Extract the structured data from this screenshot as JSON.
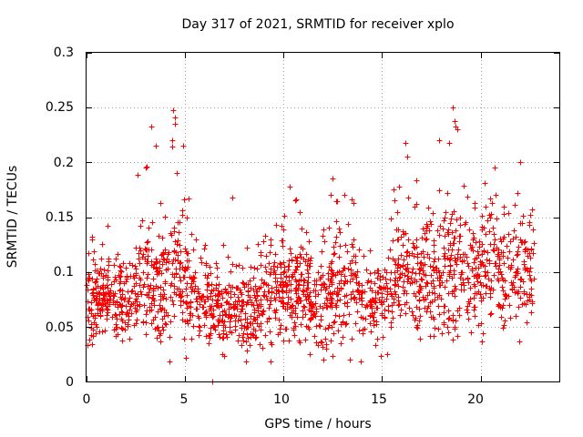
{
  "chart_data": {
    "type": "scatter",
    "title": "Day 317 of 2021, SRMTID for receiver xplo",
    "xlabel": "GPS time / hours",
    "ylabel": "SRMTID / TECUs",
    "xlim": [
      0,
      24
    ],
    "ylim": [
      0,
      0.3
    ],
    "xticks": [
      0,
      5,
      10,
      15,
      20
    ],
    "xtick_labels": [
      "0",
      "5",
      "10",
      "15",
      "20"
    ],
    "yticks": [
      0,
      0.05,
      0.1,
      0.15,
      0.2,
      0.25,
      0.3
    ],
    "ytick_labels": [
      "0",
      "0.05",
      "0.1",
      "0.15",
      "0.2",
      "0.25",
      "0.3"
    ],
    "grid": true,
    "marker": "+",
    "color": "#ff0000",
    "series": [
      {
        "name": "SRMTID",
        "density_profile": [
          {
            "x": 0.0,
            "mean": 0.07,
            "spread": 0.02,
            "max": 0.13
          },
          {
            "x": 1.0,
            "mean": 0.08,
            "spread": 0.02,
            "max": 0.15
          },
          {
            "x": 2.0,
            "mean": 0.075,
            "spread": 0.02,
            "max": 0.13
          },
          {
            "x": 3.0,
            "mean": 0.095,
            "spread": 0.03,
            "max": 0.235
          },
          {
            "x": 4.0,
            "mean": 0.09,
            "spread": 0.03,
            "max": 0.16
          },
          {
            "x": 4.5,
            "mean": 0.1,
            "spread": 0.035,
            "max": 0.248
          },
          {
            "x": 5.5,
            "mean": 0.08,
            "spread": 0.025,
            "max": 0.13
          },
          {
            "x": 6.5,
            "mean": 0.07,
            "spread": 0.02,
            "max": 0.12
          },
          {
            "x": 7.5,
            "mean": 0.065,
            "spread": 0.02,
            "max": 0.17
          },
          {
            "x": 8.5,
            "mean": 0.07,
            "spread": 0.02,
            "max": 0.12
          },
          {
            "x": 9.5,
            "mean": 0.085,
            "spread": 0.025,
            "max": 0.15
          },
          {
            "x": 10.5,
            "mean": 0.085,
            "spread": 0.025,
            "max": 0.18
          },
          {
            "x": 11.5,
            "mean": 0.075,
            "spread": 0.025,
            "max": 0.13
          },
          {
            "x": 12.5,
            "mean": 0.08,
            "spread": 0.025,
            "max": 0.185
          },
          {
            "x": 13.5,
            "mean": 0.09,
            "spread": 0.03,
            "max": 0.175
          },
          {
            "x": 14.5,
            "mean": 0.07,
            "spread": 0.02,
            "max": 0.12
          },
          {
            "x": 15.5,
            "mean": 0.09,
            "spread": 0.025,
            "max": 0.175
          },
          {
            "x": 16.5,
            "mean": 0.1,
            "spread": 0.03,
            "max": 0.215
          },
          {
            "x": 17.5,
            "mean": 0.095,
            "spread": 0.03,
            "max": 0.17
          },
          {
            "x": 18.5,
            "mean": 0.1,
            "spread": 0.035,
            "max": 0.25
          },
          {
            "x": 19.5,
            "mean": 0.1,
            "spread": 0.03,
            "max": 0.19
          },
          {
            "x": 20.5,
            "mean": 0.105,
            "spread": 0.03,
            "max": 0.195
          },
          {
            "x": 21.5,
            "mean": 0.095,
            "spread": 0.03,
            "max": 0.15
          },
          {
            "x": 22.0,
            "mean": 0.105,
            "spread": 0.03,
            "max": 0.2
          },
          {
            "x": 22.7,
            "mean": 0.095,
            "spread": 0.025,
            "max": 0.16
          }
        ],
        "outliers": [
          {
            "x": 3.3,
            "y": 0.233
          },
          {
            "x": 3.5,
            "y": 0.215
          },
          {
            "x": 3.0,
            "y": 0.195
          },
          {
            "x": 4.4,
            "y": 0.248
          },
          {
            "x": 4.5,
            "y": 0.235
          },
          {
            "x": 4.9,
            "y": 0.215
          },
          {
            "x": 4.6,
            "y": 0.19
          },
          {
            "x": 7.4,
            "y": 0.168
          },
          {
            "x": 10.3,
            "y": 0.178
          },
          {
            "x": 12.5,
            "y": 0.185
          },
          {
            "x": 13.1,
            "y": 0.17
          },
          {
            "x": 15.6,
            "y": 0.175
          },
          {
            "x": 16.2,
            "y": 0.218
          },
          {
            "x": 16.3,
            "y": 0.205
          },
          {
            "x": 17.9,
            "y": 0.22
          },
          {
            "x": 18.4,
            "y": 0.218
          },
          {
            "x": 18.6,
            "y": 0.25
          },
          {
            "x": 18.7,
            "y": 0.238
          },
          {
            "x": 18.8,
            "y": 0.23
          },
          {
            "x": 22.0,
            "y": 0.2
          },
          {
            "x": 20.7,
            "y": 0.195
          },
          {
            "x": 6.4,
            "y": 0.0
          },
          {
            "x": 12.0,
            "y": 0.02
          },
          {
            "x": 6.9,
            "y": 0.025
          }
        ]
      }
    ]
  }
}
